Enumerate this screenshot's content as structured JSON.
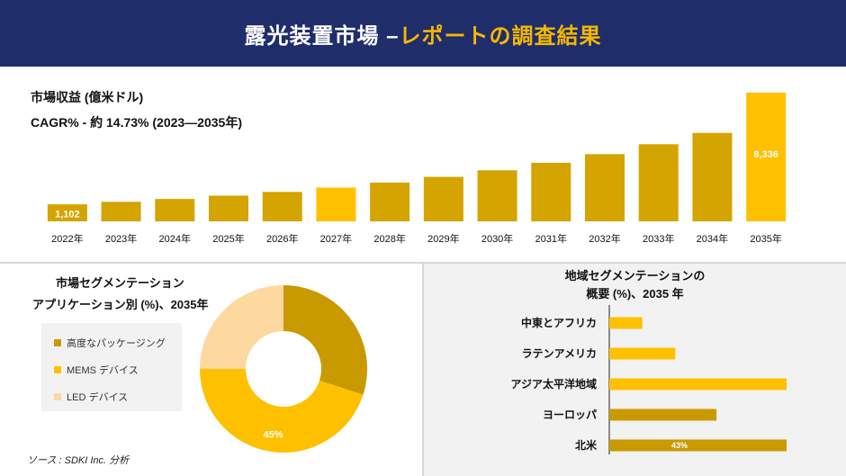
{
  "header": {
    "title": "露光装置市場 –",
    "accent": "レポートの調査結果"
  },
  "top": {
    "heading": "市場収益 (億米ドル)",
    "cagr": "CAGR% - 約 14.73% (2023—2035年)"
  },
  "chart_data": [
    {
      "type": "bar",
      "categories": [
        "2022年",
        "2023年",
        "2024年",
        "2025年",
        "2026年",
        "2027年",
        "2028年",
        "2029年",
        "2030年",
        "2031年",
        "2032年",
        "2033年",
        "2034年",
        "2035年"
      ],
      "values": [
        1102,
        1264,
        1450,
        1664,
        1909,
        2190,
        2513,
        2883,
        3308,
        3795,
        4354,
        4995,
        5731,
        8336
      ],
      "data_labels": {
        "0": "1,102",
        "13": "8,336"
      },
      "highlight_index": 5,
      "colors": {
        "base": "#d4a400",
        "highlight": "#ffc000",
        "last": "#ffc000"
      }
    },
    {
      "type": "pie",
      "title": "市場セグメンテーション\nアプリケーション別 (%)、2035年",
      "slices": [
        {
          "name": "高度なパッケージング",
          "value": 30,
          "color": "#c99a00"
        },
        {
          "name": "MEMS デバイス",
          "value": 45,
          "color": "#ffc000"
        },
        {
          "name": "LED デバイス",
          "value": 25,
          "color": "#fdd9a0"
        }
      ],
      "data_labels": [
        "",
        "45%",
        ""
      ]
    },
    {
      "type": "bar",
      "orientation": "horizontal",
      "title": "地域セグメンテーションの\n概要 (%)、2035 年",
      "categories": [
        "中東とアフリカ",
        "ラテンアメリカ",
        "アジア太平洋地域",
        "ヨーロッパ",
        "北米"
      ],
      "values": [
        8,
        16,
        43,
        26,
        43
      ],
      "data_labels": [
        "",
        "",
        "",
        "",
        "43%"
      ],
      "colors": [
        "#ffc000",
        "#ffc000",
        "#ffc000",
        "#c99a00",
        "#c99a00"
      ]
    }
  ],
  "left_panel": {
    "title_line1": "市場セグメンテーション",
    "title_line2": "アプリケーション別 (%)、2035年",
    "legend": [
      "高度なパッケージング",
      "MEMS デバイス",
      "LED デバイス"
    ],
    "pie_label": "45%"
  },
  "right_panel": {
    "title_line1": "地域セグメンテーションの",
    "title_line2": "概要 (%)、2035 年",
    "bar_label": "43%"
  },
  "source": "ソース : SDKI Inc. 分析"
}
